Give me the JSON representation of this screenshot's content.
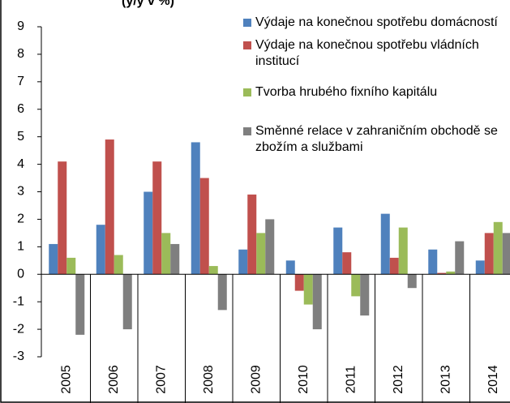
{
  "chart_data": {
    "type": "bar",
    "title": "(y/y v %)",
    "categories": [
      "2005",
      "2006",
      "2007",
      "2008",
      "2009",
      "2010",
      "2011",
      "2012",
      "2013",
      "2014"
    ],
    "series": [
      {
        "name": "Výdaje na konečnou spotřebu domácností",
        "color": "#4f81bd",
        "values": [
          1.1,
          1.8,
          3.0,
          4.8,
          0.9,
          0.5,
          1.7,
          2.2,
          0.9,
          0.5
        ]
      },
      {
        "name": "Výdaje na konečnou spotřebu vládních institucí",
        "color": "#c0504d",
        "values": [
          4.1,
          4.9,
          4.1,
          3.5,
          2.9,
          -0.6,
          0.8,
          0.6,
          0.05,
          1.5
        ]
      },
      {
        "name": "Tvorba hrubého fixního kapitálu",
        "color": "#9bbb59",
        "values": [
          0.6,
          0.7,
          1.5,
          0.3,
          1.5,
          -1.1,
          -0.8,
          1.7,
          0.1,
          1.9
        ]
      },
      {
        "name": "Směnné relace v zahraničním obchodě se zbožím a službami",
        "color": "#7f7f7f",
        "values": [
          -2.2,
          -2.0,
          1.1,
          -1.3,
          2.0,
          -2.0,
          -1.5,
          -0.5,
          1.2,
          1.5
        ]
      }
    ],
    "ylim": [
      -3,
      9
    ],
    "yticks": [
      -3,
      -2,
      -1,
      0,
      1,
      2,
      3,
      4,
      5,
      6,
      7,
      8,
      9
    ]
  }
}
